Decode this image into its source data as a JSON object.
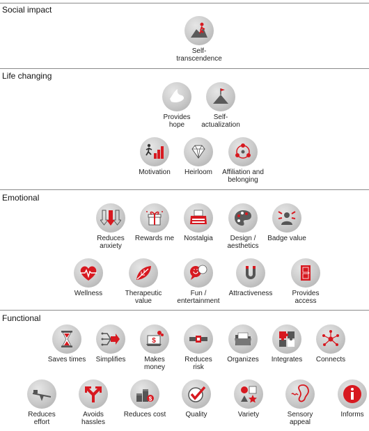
{
  "sections": [
    {
      "title": "Social impact",
      "items": [
        {
          "label": "Self-\ntranscendence",
          "icon": "self-transcendence-icon"
        }
      ]
    },
    {
      "title": "Life changing",
      "items": [
        {
          "label": "Provides\nhope",
          "icon": "dove-icon"
        },
        {
          "label": "Self-\nactualization",
          "icon": "mountain-flag-icon"
        },
        {
          "label": "Motivation",
          "icon": "runner-bars-icon"
        },
        {
          "label": "Heirloom",
          "icon": "diamond-icon"
        },
        {
          "label": "Affiliation and\nbelonging",
          "icon": "network-people-icon"
        }
      ]
    },
    {
      "title": "Emotional",
      "items": [
        {
          "label": "Reduces\nanxiety",
          "icon": "down-arrows-icon"
        },
        {
          "label": "Rewards me",
          "icon": "gift-icon"
        },
        {
          "label": "Nostalgia",
          "icon": "typewriter-icon"
        },
        {
          "label": "Design /\naesthetics",
          "icon": "palette-icon"
        },
        {
          "label": "Badge value",
          "icon": "badge-person-icon"
        },
        {
          "label": "Wellness",
          "icon": "heart-pulse-icon"
        },
        {
          "label": "Therapeutic\nvalue",
          "icon": "leaf-icon"
        },
        {
          "label": "Fun /\nentertainment",
          "icon": "speech-bubbles-icon"
        },
        {
          "label": "Attractiveness",
          "icon": "magnet-icon"
        },
        {
          "label": "Provides\naccess",
          "icon": "door-icon"
        }
      ]
    },
    {
      "title": "Functional",
      "items": [
        {
          "label": "Saves times",
          "icon": "hourglass-icon"
        },
        {
          "label": "Simplifies",
          "icon": "merge-arrow-icon"
        },
        {
          "label": "Makes\nmoney",
          "icon": "money-laptop-icon"
        },
        {
          "label": "Reduces\nrisk",
          "icon": "lock-pipe-icon"
        },
        {
          "label": "Organizes",
          "icon": "folder-icon"
        },
        {
          "label": "Integrates",
          "icon": "puzzle-icon"
        },
        {
          "label": "Connects",
          "icon": "connect-nodes-icon"
        },
        {
          "label": "Reduces\neffort",
          "icon": "seesaw-icon"
        },
        {
          "label": "Avoids\nhassles",
          "icon": "split-arrow-icon"
        },
        {
          "label": "Reduces cost",
          "icon": "coins-icon"
        },
        {
          "label": "Quality",
          "icon": "checkmark-icon"
        },
        {
          "label": "Variety",
          "icon": "shapes-icon"
        },
        {
          "label": "Sensory\nappeal",
          "icon": "ear-icon"
        },
        {
          "label": "Informs",
          "icon": "info-icon"
        }
      ]
    }
  ],
  "colors": {
    "accent": "#d71920",
    "icon_gray": "#5a5a5a",
    "circle": "#c9c9c9",
    "rule": "#8a8a8a"
  }
}
